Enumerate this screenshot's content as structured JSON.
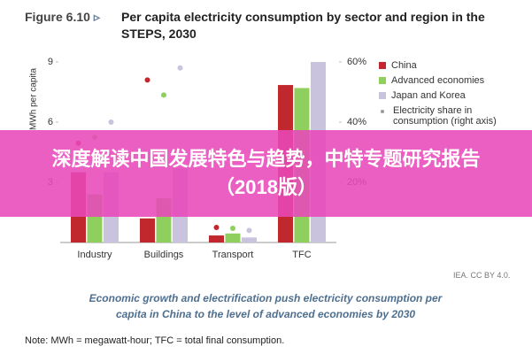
{
  "figure_label": "Figure 6.10",
  "chart_data": {
    "type": "bar",
    "title": "Per capita electricity consumption by sector and region in the STEPS, 2030",
    "y_label": "MWh per capita",
    "categories": [
      "Industry",
      "Buildings",
      "Transport",
      "TFC"
    ],
    "series": [
      {
        "name": "China",
        "color": "#c0282d",
        "values": [
          3.5,
          1.2,
          0.35,
          7.85
        ],
        "share": [
          33,
          54,
          5,
          33
        ]
      },
      {
        "name": "Advanced economies",
        "color": "#8ecf5e",
        "values": [
          2.4,
          2.2,
          0.45,
          7.7
        ],
        "share": [
          35,
          49,
          4.7,
          38
        ]
      },
      {
        "name": "Japan and Korea",
        "color": "#c9c3de",
        "values": [
          3.5,
          3.7,
          0.25,
          9.0
        ],
        "share": [
          40,
          58,
          4,
          36
        ]
      }
    ],
    "share_name": "Electricity share in consumption (right axis)",
    "share_color": "#9a9a9a",
    "ylim": [
      0,
      9
    ],
    "yticks": [
      3,
      6,
      9
    ],
    "y2lim": [
      0,
      60
    ],
    "y2ticks": [
      {
        "value": 20,
        "label": "20%"
      },
      {
        "value": 40,
        "label": "40%"
      },
      {
        "value": 60,
        "label": "60%"
      }
    ],
    "grid": false
  },
  "source": "IEA. CC BY 4.0.",
  "caption": "Economic growth and electrification push electricity consumption per capita in China to the level of advanced economies by 2030",
  "note": "Note: MWh = megawatt-hour; TFC = total final consumption.",
  "banner": "深度解读中国发展特色与趋势，中特专题研究报告（2018版）"
}
